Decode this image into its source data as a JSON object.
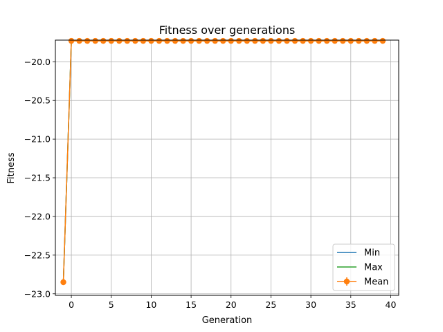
{
  "chart_data": {
    "type": "line",
    "title": "Fitness over generations",
    "xlabel": "Generation",
    "ylabel": "Fitness",
    "xlim": [
      -2.0,
      41.0
    ],
    "ylim": [
      -23.02,
      -19.72
    ],
    "xticks": [
      0,
      5,
      10,
      15,
      20,
      25,
      30,
      35,
      40
    ],
    "yticks": [
      -23.0,
      -22.5,
      -22.0,
      -21.5,
      -21.0,
      -20.5,
      -20.0
    ],
    "xtick_labels": [
      "0",
      "5",
      "10",
      "15",
      "20",
      "25",
      "30",
      "35",
      "40"
    ],
    "ytick_labels": [
      "−23.0",
      "−22.5",
      "−22.0",
      "−21.5",
      "−21.0",
      "−20.5",
      "−20.0"
    ],
    "grid": true,
    "legend_position": "lower right",
    "x": [
      -1,
      0,
      1,
      2,
      3,
      4,
      5,
      6,
      7,
      8,
      9,
      10,
      11,
      12,
      13,
      14,
      15,
      16,
      17,
      18,
      19,
      20,
      21,
      22,
      23,
      24,
      25,
      26,
      27,
      28,
      29,
      30,
      31,
      32,
      33,
      34,
      35,
      36,
      37,
      38,
      39
    ],
    "series": [
      {
        "name": "Min",
        "color": "#1f77b4",
        "marker": "none",
        "values": [
          -22.85,
          -19.73,
          -19.73,
          -19.73,
          -19.73,
          -19.73,
          -19.73,
          -19.73,
          -19.73,
          -19.73,
          -19.73,
          -19.73,
          -19.73,
          -19.73,
          -19.73,
          -19.73,
          -19.73,
          -19.73,
          -19.73,
          -19.73,
          -19.73,
          -19.73,
          -19.73,
          -19.73,
          -19.73,
          -19.73,
          -19.73,
          -19.73,
          -19.73,
          -19.73,
          -19.73,
          -19.73,
          -19.73,
          -19.73,
          -19.73,
          -19.73,
          -19.73,
          -19.73,
          -19.73,
          -19.73,
          -19.73
        ]
      },
      {
        "name": "Max",
        "color": "#2ca02c",
        "marker": "none",
        "values": [
          -22.85,
          -19.73,
          -19.73,
          -19.73,
          -19.73,
          -19.73,
          -19.73,
          -19.73,
          -19.73,
          -19.73,
          -19.73,
          -19.73,
          -19.73,
          -19.73,
          -19.73,
          -19.73,
          -19.73,
          -19.73,
          -19.73,
          -19.73,
          -19.73,
          -19.73,
          -19.73,
          -19.73,
          -19.73,
          -19.73,
          -19.73,
          -19.73,
          -19.73,
          -19.73,
          -19.73,
          -19.73,
          -19.73,
          -19.73,
          -19.73,
          -19.73,
          -19.73,
          -19.73,
          -19.73,
          -19.73,
          -19.73
        ]
      },
      {
        "name": "Mean",
        "color": "#ff7f0e",
        "marker": "circle",
        "errorbar": true,
        "values": [
          -22.85,
          -19.73,
          -19.73,
          -19.73,
          -19.73,
          -19.73,
          -19.73,
          -19.73,
          -19.73,
          -19.73,
          -19.73,
          -19.73,
          -19.73,
          -19.73,
          -19.73,
          -19.73,
          -19.73,
          -19.73,
          -19.73,
          -19.73,
          -19.73,
          -19.73,
          -19.73,
          -19.73,
          -19.73,
          -19.73,
          -19.73,
          -19.73,
          -19.73,
          -19.73,
          -19.73,
          -19.73,
          -19.73,
          -19.73,
          -19.73,
          -19.73,
          -19.73,
          -19.73,
          -19.73,
          -19.73,
          -19.73
        ]
      }
    ]
  }
}
